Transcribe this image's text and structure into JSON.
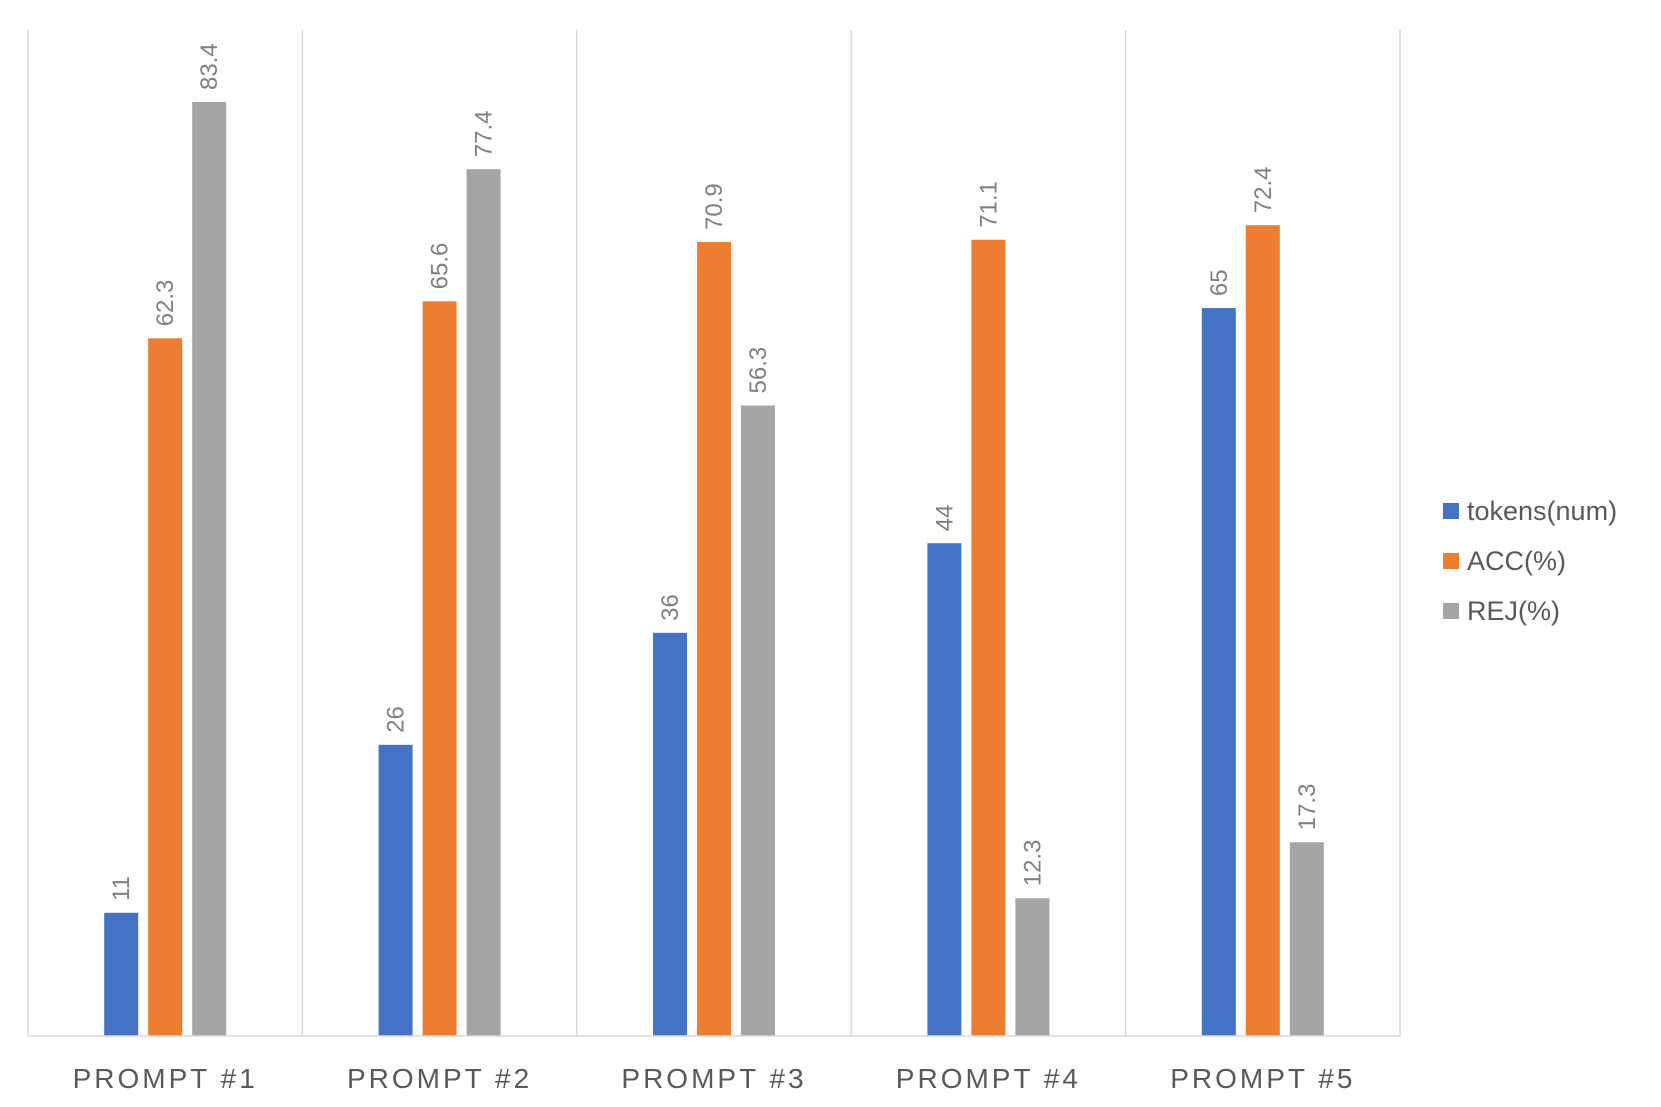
{
  "chart_data": {
    "type": "bar",
    "categories": [
      "PROMPT #1",
      "PROMPT #2",
      "PROMPT #3",
      "PROMPT #4",
      "PROMPT #5"
    ],
    "series": [
      {
        "name": "tokens(num)",
        "color": "#4472C4",
        "values": [
          11,
          26,
          36,
          44,
          65
        ]
      },
      {
        "name": "ACC(%)",
        "color": "#ED7D31",
        "values": [
          62.3,
          65.6,
          70.9,
          71.1,
          72.4
        ]
      },
      {
        "name": "REJ(%)",
        "color": "#A5A5A5",
        "values": [
          83.4,
          77.4,
          56.3,
          12.3,
          17.3
        ]
      }
    ],
    "ylim": [
      0,
      83.4
    ],
    "grid": "vertical category separators",
    "legend_position": "right",
    "data_labels": "rotated above bars"
  }
}
